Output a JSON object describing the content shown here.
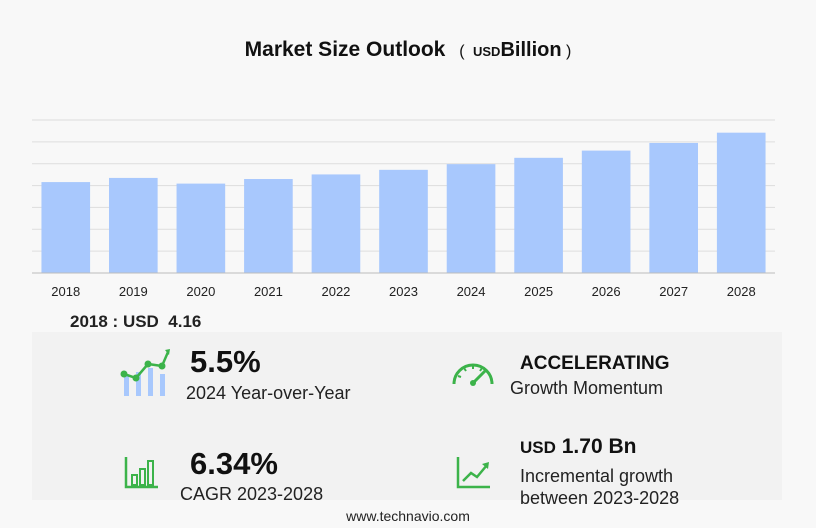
{
  "header": {
    "title": "Market Size Outlook",
    "unit_prefix": "USD",
    "unit": "Billion"
  },
  "chart_data": {
    "type": "bar",
    "title": "Market Size Outlook ( USD Billion )",
    "categories": [
      "2018",
      "2019",
      "2020",
      "2021",
      "2022",
      "2023",
      "2024",
      "2025",
      "2026",
      "2027",
      "2028"
    ],
    "values": [
      4.16,
      4.35,
      4.09,
      4.3,
      4.51,
      4.72,
      4.98,
      5.27,
      5.6,
      5.95,
      6.42
    ],
    "ylim": [
      0,
      7.0
    ],
    "grid": true,
    "bar_color": "#a8c8fd"
  },
  "base_value": {
    "year": "2018",
    "prefix": "USD",
    "value": "4.16"
  },
  "stats": {
    "yoy": {
      "value": "5.5%",
      "label": "2024 Year-over-Year",
      "icon": "bar-growth-icon"
    },
    "momentum": {
      "value": "ACCELERATING",
      "label": "Growth Momentum",
      "icon": "speedometer-icon"
    },
    "cagr": {
      "value": "6.34%",
      "label": "CAGR 2023-2028",
      "icon": "bar-chart-icon"
    },
    "incremental": {
      "prefix": "USD",
      "value": "1.70 Bn",
      "label_line1": "Incremental growth",
      "label_line2": "between 2023-2028",
      "icon": "trend-line-icon"
    }
  },
  "colors": {
    "accent_green": "#3cb34a",
    "bar": "#a8c8fd",
    "grid": "#dddddd"
  },
  "footer": {
    "source": "www.technavio.com"
  }
}
